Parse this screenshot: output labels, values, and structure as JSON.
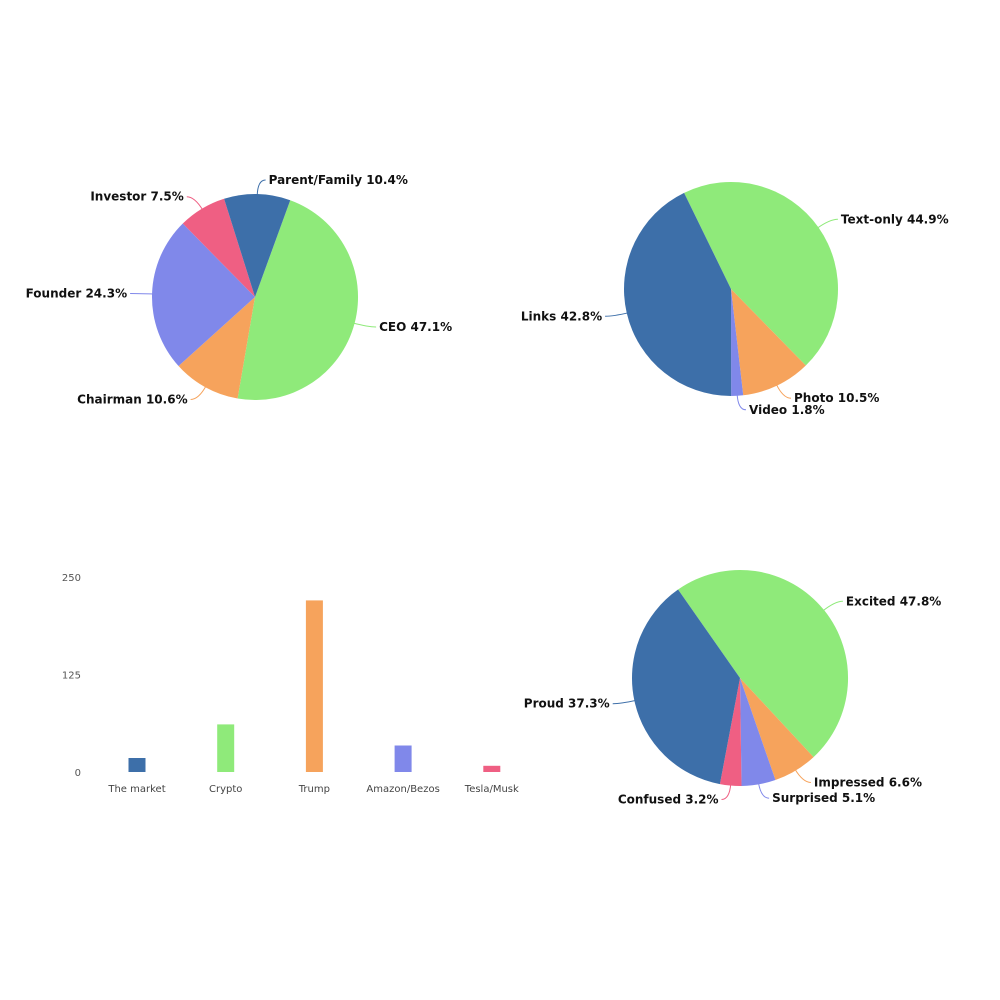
{
  "colors": {
    "blue": "#3d6fa9",
    "green": "#8fea7a",
    "orange": "#f6a35c",
    "purple": "#8088ea",
    "pink": "#ef5f83"
  },
  "chart_data": [
    {
      "type": "pie",
      "title": "",
      "slices": [
        {
          "label": "CEO",
          "value": 47.1,
          "display": "CEO 47.1%",
          "color": "#8fea7a"
        },
        {
          "label": "Chairman",
          "value": 10.6,
          "display": "Chairman 10.6%",
          "color": "#f6a35c"
        },
        {
          "label": "Founder",
          "value": 24.3,
          "display": "Founder 24.3%",
          "color": "#8088ea"
        },
        {
          "label": "Investor",
          "value": 7.5,
          "display": "Investor 7.5%",
          "color": "#ef5f83"
        },
        {
          "label": "Parent/Family",
          "value": 10.4,
          "display": "Parent/Family 10.4%",
          "color": "#3d6fa9"
        }
      ]
    },
    {
      "type": "pie",
      "title": "",
      "slices": [
        {
          "label": "Text-only",
          "value": 44.9,
          "display": "Text-only 44.9%",
          "color": "#8fea7a"
        },
        {
          "label": "Photo",
          "value": 10.5,
          "display": "Photo 10.5%",
          "color": "#f6a35c"
        },
        {
          "label": "Video",
          "value": 1.8,
          "display": "Video 1.8%",
          "color": "#8088ea"
        },
        {
          "label": "Links",
          "value": 42.8,
          "display": "Links 42.8%",
          "color": "#3d6fa9"
        }
      ]
    },
    {
      "type": "bar",
      "title": "",
      "categories": [
        "The market",
        "Crypto",
        "Trump",
        "Amazon/Bezos",
        "Tesla/Musk"
      ],
      "values": [
        18,
        61,
        220,
        34,
        8
      ],
      "colors": [
        "#3d6fa9",
        "#8fea7a",
        "#f6a35c",
        "#8088ea",
        "#ef5f83"
      ],
      "yticks": [
        "0",
        "125",
        "250"
      ],
      "ylim": [
        0,
        250
      ],
      "xlabel": "",
      "ylabel": "",
      "grid": false
    },
    {
      "type": "pie",
      "title": "",
      "slices": [
        {
          "label": "Excited",
          "value": 47.8,
          "display": "Excited 47.8%",
          "color": "#8fea7a"
        },
        {
          "label": "Impressed",
          "value": 6.6,
          "display": "Impressed 6.6%",
          "color": "#f6a35c"
        },
        {
          "label": "Surprised",
          "value": 5.1,
          "display": "Surprised 5.1%",
          "color": "#8088ea"
        },
        {
          "label": "Confused",
          "value": 3.2,
          "display": "Confused 3.2%",
          "color": "#ef5f83"
        },
        {
          "label": "Proud",
          "value": 37.3,
          "display": "Proud 37.3%",
          "color": "#3d6fa9"
        }
      ]
    }
  ]
}
